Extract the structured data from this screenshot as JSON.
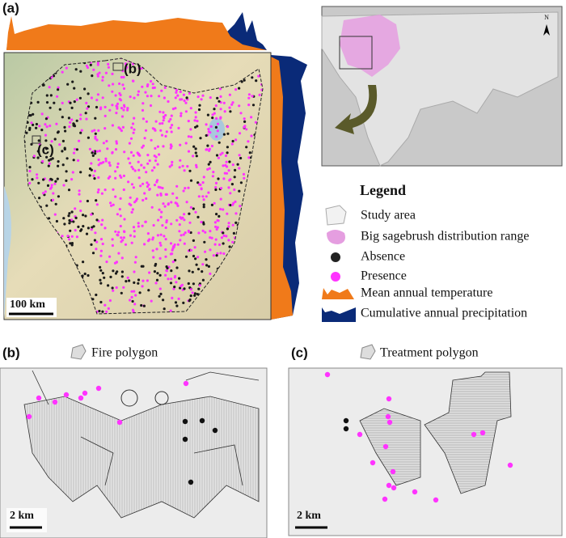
{
  "panel_a": {
    "label": "(a)",
    "inset_b": "(b)",
    "inset_c": "(c)",
    "scale_bar": "100 km",
    "north": "N"
  },
  "legend": {
    "title": "Legend",
    "items": [
      "Study area",
      "Big sagebrush distribution range",
      "Absence",
      "Presence",
      "Mean annual temperature",
      "Cumulative annual precipitation"
    ]
  },
  "panel_b": {
    "label": "(b)",
    "legend": "Fire polygon",
    "scale_bar": "2 km"
  },
  "panel_c": {
    "label": "(c)",
    "legend": "Treatment polygon",
    "scale_bar": "2 km"
  }
}
